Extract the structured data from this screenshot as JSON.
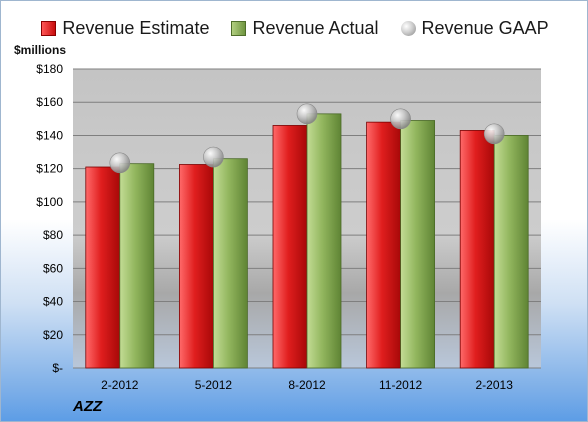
{
  "legend": {
    "estimate": "Revenue Estimate",
    "actual": "Revenue Actual",
    "gaap": "Revenue GAAP"
  },
  "unit_label": "$millions",
  "ticker": "AZZ",
  "colors": {
    "estimate": "#d11a1a",
    "actual": "#8db15a",
    "gaap": "#b0b0b0",
    "plot_bg": "#c8c8c8",
    "grid": "#7f7f7f"
  },
  "chart_data": {
    "type": "bar",
    "categories": [
      "2-2012",
      "5-2012",
      "8-2012",
      "11-2012",
      "2-2013"
    ],
    "series": [
      {
        "name": "Revenue Estimate",
        "values": [
          121,
          122.5,
          146,
          148,
          143
        ]
      },
      {
        "name": "Revenue Actual",
        "values": [
          123,
          126,
          153,
          149,
          140
        ]
      },
      {
        "name": "Revenue GAAP",
        "type": "scatter",
        "values": [
          123.5,
          127,
          153,
          150,
          141
        ]
      }
    ],
    "ylim": [
      0,
      180
    ],
    "yticks": [
      0,
      20,
      40,
      60,
      80,
      100,
      120,
      140,
      160,
      180
    ],
    "ytick_labels": [
      "$-",
      "$20",
      "$40",
      "$60",
      "$80",
      "$100",
      "$120",
      "$140",
      "$160",
      "$180"
    ],
    "ylabel": "$millions",
    "grid": true,
    "legend_position": "top"
  }
}
